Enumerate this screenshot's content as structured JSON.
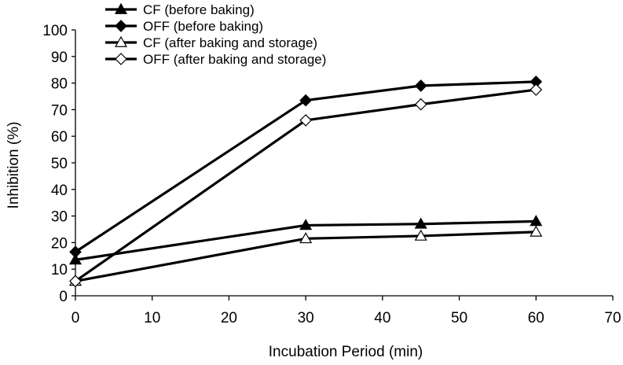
{
  "chart_data": {
    "type": "line",
    "title": "",
    "xlabel": "Incubation Period (min)",
    "ylabel": "Inhibition (%)",
    "xlim": [
      0,
      70
    ],
    "ylim": [
      0,
      100
    ],
    "xticks": [
      "0",
      "10",
      "20",
      "30",
      "40",
      "50",
      "60",
      "70"
    ],
    "yticks": [
      "0",
      "10",
      "20",
      "30",
      "40",
      "50",
      "60",
      "70",
      "80",
      "90",
      "100"
    ],
    "grid": false,
    "legend_position": "top-left",
    "x": [
      0,
      30,
      45,
      60
    ],
    "series": [
      {
        "name": "CF (before baking)",
        "marker": "triangle-filled",
        "values": [
          13.5,
          26.5,
          27.0,
          28.0
        ]
      },
      {
        "name": "OFF (before baking)",
        "marker": "diamond-filled",
        "values": [
          16.5,
          73.5,
          79.0,
          80.5
        ]
      },
      {
        "name": "CF (after baking and storage)",
        "marker": "triangle-open",
        "values": [
          5.5,
          21.5,
          22.5,
          24.0
        ]
      },
      {
        "name": "OFF (after baking and storage)",
        "marker": "diamond-open",
        "values": [
          5.5,
          66.0,
          72.0,
          77.5
        ]
      }
    ],
    "line_color": "#000000"
  }
}
